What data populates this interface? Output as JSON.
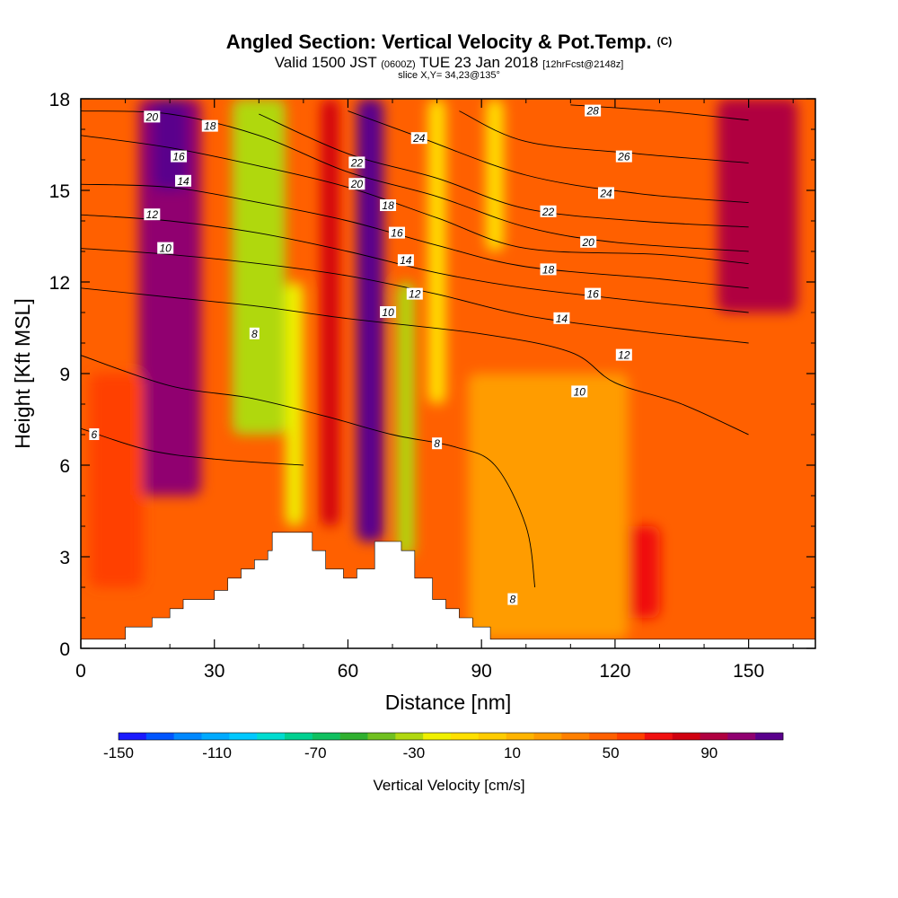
{
  "header": {
    "title": "Angled Section: Vertical Velocity & Pot.Temp.",
    "title_mark": "(C)",
    "subtitle_main": "Valid 1500 JST",
    "subtitle_z": "(0600Z)",
    "subtitle_date": "TUE 23 Jan 2018",
    "subtitle_fcst": "[12hrFcst@2148z]",
    "slice": "slice X,Y= 34,23@135°"
  },
  "chart_data": {
    "type": "heatmap",
    "title": "Angled Section: Vertical Velocity & Pot.Temp.",
    "xlabel": "Distance [nm]",
    "ylabel": "Height [Kft MSL]",
    "xlim": [
      0,
      165
    ],
    "ylim": [
      0,
      18
    ],
    "x_ticks": [
      0,
      30,
      60,
      90,
      120,
      150
    ],
    "y_ticks": [
      0,
      3,
      6,
      9,
      12,
      15,
      18
    ],
    "x_tick_labels": [
      "0",
      "30",
      "60",
      "90",
      "120",
      "150"
    ],
    "y_tick_labels": [
      "0",
      "3",
      "6",
      "9",
      "12",
      "15",
      "18"
    ],
    "colorbar": {
      "label": "Vertical Velocity [cm/s]",
      "min": -150,
      "max": 120,
      "step": 10,
      "tick_values": [
        -150,
        -110,
        -70,
        -30,
        10,
        50,
        90
      ],
      "tick_labels": [
        "-150",
        "-110",
        "-70",
        "-30",
        "10",
        "50",
        "90"
      ],
      "colors": [
        "#1a1aff",
        "#0055ff",
        "#0088ff",
        "#00aaff",
        "#00c8ff",
        "#00dcd0",
        "#00d090",
        "#10c060",
        "#30b030",
        "#70c020",
        "#b0d810",
        "#f0f000",
        "#ffe000",
        "#ffcc00",
        "#ffb400",
        "#ff9c00",
        "#ff8000",
        "#ff6000",
        "#ff4000",
        "#f01010",
        "#d00010",
        "#b00040",
        "#900070",
        "#5a008c"
      ]
    },
    "terrain_top_kft": [
      [
        0,
        0.3
      ],
      [
        10,
        0.3
      ],
      [
        10,
        0.7
      ],
      [
        16,
        0.7
      ],
      [
        16,
        1.0
      ],
      [
        20,
        1.0
      ],
      [
        20,
        1.3
      ],
      [
        23,
        1.3
      ],
      [
        23,
        1.6
      ],
      [
        30,
        1.6
      ],
      [
        30,
        1.9
      ],
      [
        33,
        1.9
      ],
      [
        33,
        2.3
      ],
      [
        36,
        2.3
      ],
      [
        36,
        2.6
      ],
      [
        39,
        2.6
      ],
      [
        39,
        2.9
      ],
      [
        42,
        2.9
      ],
      [
        42,
        3.2
      ],
      [
        43,
        3.2
      ],
      [
        43,
        3.8
      ],
      [
        52,
        3.8
      ],
      [
        52,
        3.2
      ],
      [
        55,
        3.2
      ],
      [
        55,
        2.6
      ],
      [
        59,
        2.6
      ],
      [
        59,
        2.3
      ],
      [
        62,
        2.3
      ],
      [
        62,
        2.6
      ],
      [
        66,
        2.6
      ],
      [
        66,
        3.5
      ],
      [
        72,
        3.5
      ],
      [
        72,
        3.2
      ],
      [
        75,
        3.2
      ],
      [
        75,
        2.3
      ],
      [
        79,
        2.3
      ],
      [
        79,
        1.6
      ],
      [
        82,
        1.6
      ],
      [
        82,
        1.3
      ],
      [
        85,
        1.3
      ],
      [
        85,
        1.0
      ],
      [
        88,
        1.0
      ],
      [
        88,
        0.7
      ],
      [
        92,
        0.7
      ],
      [
        92,
        0.3
      ],
      [
        165,
        0.3
      ]
    ],
    "vertical_velocity_features": [
      {
        "x_center": 20,
        "x_halfwidth": 7,
        "y_range": [
          5,
          18
        ],
        "value": 75
      },
      {
        "x_center": 20,
        "x_halfwidth": 4,
        "y_range": [
          15,
          18
        ],
        "value": 95
      },
      {
        "x_center": 40,
        "x_halfwidth": 6,
        "y_range": [
          7,
          18
        ],
        "value": -50
      },
      {
        "x_center": 48,
        "x_halfwidth": 2,
        "y_range": [
          4,
          12
        ],
        "value": -40
      },
      {
        "x_center": 56,
        "x_halfwidth": 2,
        "y_range": [
          4,
          18
        ],
        "value": 55
      },
      {
        "x_center": 65,
        "x_halfwidth": 3,
        "y_range": [
          3.5,
          18
        ],
        "value": 95
      },
      {
        "x_center": 73,
        "x_halfwidth": 2,
        "y_range": [
          3,
          12
        ],
        "value": -45
      },
      {
        "x_center": 80,
        "x_halfwidth": 2,
        "y_range": [
          8,
          18
        ],
        "value": -25
      },
      {
        "x_center": 93,
        "x_halfwidth": 2,
        "y_range": [
          13,
          18
        ],
        "value": -25
      },
      {
        "x_center": 152,
        "x_halfwidth": 9,
        "y_range": [
          11,
          18
        ],
        "value": 60
      },
      {
        "x_center": 120,
        "x_halfwidth": 10,
        "y_range": [
          1,
          4
        ],
        "value": 40
      },
      {
        "x_center": 105,
        "x_halfwidth": 18,
        "y_range": [
          0.3,
          9
        ],
        "value": 0
      },
      {
        "x_center": 8,
        "x_halfwidth": 6,
        "y_range": [
          2,
          9
        ],
        "value": 30
      }
    ],
    "potential_temperature_contours": [
      {
        "value": 6,
        "points": [
          [
            0,
            7.2
          ],
          [
            15,
            6.5
          ],
          [
            30,
            6.2
          ],
          [
            50,
            6.0
          ]
        ]
      },
      {
        "value": 8,
        "points": [
          [
            0,
            9.6
          ],
          [
            20,
            8.6
          ],
          [
            38,
            8.2
          ],
          [
            55,
            7.6
          ],
          [
            70,
            7.0
          ],
          [
            84,
            6.6
          ],
          [
            93,
            6.0
          ],
          [
            100,
            4.0
          ],
          [
            102,
            2.0
          ]
        ]
      },
      {
        "value": 10,
        "points": [
          [
            0,
            11.8
          ],
          [
            20,
            11.5
          ],
          [
            40,
            11.2
          ],
          [
            60,
            10.8
          ],
          [
            90,
            10.3
          ],
          [
            110,
            9.7
          ],
          [
            120,
            8.7
          ],
          [
            135,
            8.0
          ],
          [
            150,
            7.0
          ]
        ]
      },
      {
        "value": 12,
        "points": [
          [
            0,
            13.1
          ],
          [
            20,
            12.9
          ],
          [
            40,
            12.6
          ],
          [
            60,
            12.2
          ],
          [
            80,
            11.6
          ],
          [
            100,
            10.9
          ],
          [
            125,
            10.4
          ],
          [
            150,
            10.0
          ]
        ]
      },
      {
        "value": 14,
        "points": [
          [
            0,
            14.2
          ],
          [
            20,
            14.0
          ],
          [
            40,
            13.6
          ],
          [
            60,
            13.0
          ],
          [
            80,
            12.3
          ],
          [
            100,
            11.8
          ],
          [
            130,
            11.3
          ],
          [
            150,
            11.0
          ]
        ]
      },
      {
        "value": 16,
        "points": [
          [
            0,
            15.2
          ],
          [
            20,
            15.1
          ],
          [
            40,
            14.6
          ],
          [
            60,
            14.0
          ],
          [
            80,
            13.2
          ],
          [
            100,
            12.5
          ],
          [
            130,
            12.1
          ],
          [
            150,
            11.8
          ]
        ]
      },
      {
        "value": 18,
        "points": [
          [
            0,
            16.8
          ],
          [
            20,
            16.4
          ],
          [
            40,
            15.8
          ],
          [
            60,
            15.1
          ],
          [
            80,
            14.1
          ],
          [
            100,
            13.1
          ],
          [
            130,
            12.9
          ],
          [
            150,
            12.6
          ]
        ]
      },
      {
        "value": 20,
        "points": [
          [
            0,
            17.6
          ],
          [
            20,
            17.5
          ],
          [
            40,
            16.8
          ],
          [
            60,
            15.6
          ],
          [
            80,
            14.8
          ],
          [
            100,
            13.8
          ],
          [
            120,
            13.3
          ],
          [
            150,
            13.0
          ]
        ]
      },
      {
        "value": 22,
        "points": [
          [
            40,
            17.5
          ],
          [
            60,
            16.2
          ],
          [
            80,
            15.4
          ],
          [
            100,
            14.4
          ],
          [
            125,
            14.0
          ],
          [
            150,
            13.8
          ]
        ]
      },
      {
        "value": 24,
        "points": [
          [
            60,
            17.6
          ],
          [
            75,
            16.8
          ],
          [
            100,
            15.5
          ],
          [
            125,
            14.9
          ],
          [
            150,
            14.6
          ]
        ]
      },
      {
        "value": 26,
        "points": [
          [
            85,
            17.6
          ],
          [
            100,
            16.6
          ],
          [
            125,
            16.2
          ],
          [
            150,
            15.9
          ]
        ]
      },
      {
        "value": 28,
        "points": [
          [
            110,
            17.8
          ],
          [
            130,
            17.6
          ],
          [
            150,
            17.3
          ]
        ]
      }
    ],
    "contour_labels": [
      {
        "text": "20",
        "x": 16,
        "y": 17.4
      },
      {
        "text": "18",
        "x": 29,
        "y": 17.1
      },
      {
        "text": "16",
        "x": 22,
        "y": 16.1
      },
      {
        "text": "14",
        "x": 23,
        "y": 15.3
      },
      {
        "text": "12",
        "x": 16,
        "y": 14.2
      },
      {
        "text": "10",
        "x": 19,
        "y": 13.1
      },
      {
        "text": "8",
        "x": 39,
        "y": 10.3
      },
      {
        "text": "6",
        "x": 3,
        "y": 7.0
      },
      {
        "text": "22",
        "x": 62,
        "y": 15.9
      },
      {
        "text": "20",
        "x": 62,
        "y": 15.2
      },
      {
        "text": "24",
        "x": 76,
        "y": 16.7
      },
      {
        "text": "18",
        "x": 69,
        "y": 14.5
      },
      {
        "text": "16",
        "x": 71,
        "y": 13.6
      },
      {
        "text": "14",
        "x": 73,
        "y": 12.7
      },
      {
        "text": "12",
        "x": 75,
        "y": 11.6
      },
      {
        "text": "10",
        "x": 69,
        "y": 11.0
      },
      {
        "text": "8",
        "x": 80,
        "y": 6.7
      },
      {
        "text": "28",
        "x": 115,
        "y": 17.6
      },
      {
        "text": "26",
        "x": 122,
        "y": 16.1
      },
      {
        "text": "24",
        "x": 118,
        "y": 14.9
      },
      {
        "text": "22",
        "x": 105,
        "y": 14.3
      },
      {
        "text": "20",
        "x": 114,
        "y": 13.3
      },
      {
        "text": "18",
        "x": 105,
        "y": 12.4
      },
      {
        "text": "16",
        "x": 115,
        "y": 11.6
      },
      {
        "text": "14",
        "x": 108,
        "y": 10.8
      },
      {
        "text": "12",
        "x": 122,
        "y": 9.6
      },
      {
        "text": "10",
        "x": 112,
        "y": 8.4
      },
      {
        "text": "8",
        "x": 97,
        "y": 1.6
      }
    ]
  }
}
